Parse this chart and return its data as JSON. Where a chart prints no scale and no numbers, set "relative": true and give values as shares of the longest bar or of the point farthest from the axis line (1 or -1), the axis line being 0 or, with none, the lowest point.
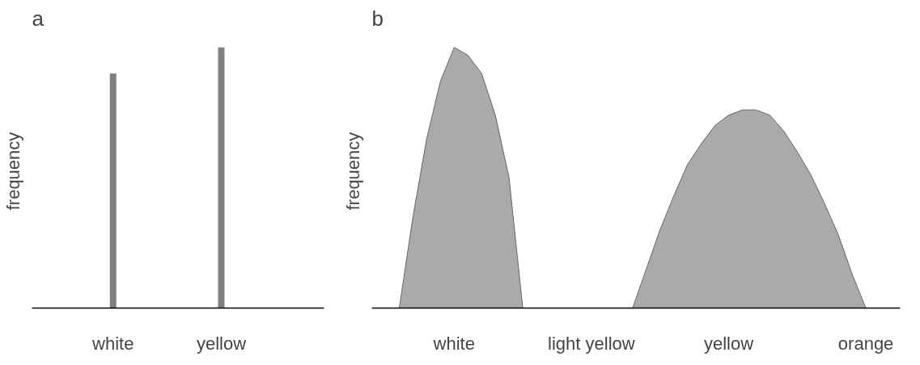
{
  "chart_data": [
    {
      "type": "bar",
      "title": "a",
      "ylabel": "frequency",
      "relative": true,
      "categories": [
        "white",
        "yellow"
      ],
      "values": [
        0.9,
        1
      ],
      "color": "#808080",
      "grid": false
    },
    {
      "type": "area",
      "title": "b",
      "ylabel": "frequency",
      "relative": true,
      "grid": false,
      "categories": [
        null,
        null,
        null,
        null,
        null,
        "white",
        null,
        null,
        null,
        null,
        null,
        null,
        null,
        null,
        null,
        "light yellow",
        null,
        null,
        null,
        null,
        null,
        null,
        null,
        null,
        null,
        "yellow",
        null,
        null,
        null,
        null,
        null,
        null,
        null,
        null,
        null,
        "orange",
        null,
        null
      ],
      "series": [
        {
          "color": "#aaaaaa",
          "values": [
            null,
            0,
            0.35,
            0.65,
            0.87,
            1,
            0.97,
            0.9,
            0.74,
            0.5,
            0,
            null,
            null,
            null,
            null,
            null,
            null,
            null,
            0,
            0.15,
            0.3,
            0.43,
            0.55,
            0.63,
            0.7,
            0.74,
            0.76,
            0.76,
            0.74,
            0.68,
            0.6,
            0.51,
            0.4,
            0.28,
            0.13,
            0,
            null,
            null
          ]
        }
      ]
    }
  ]
}
